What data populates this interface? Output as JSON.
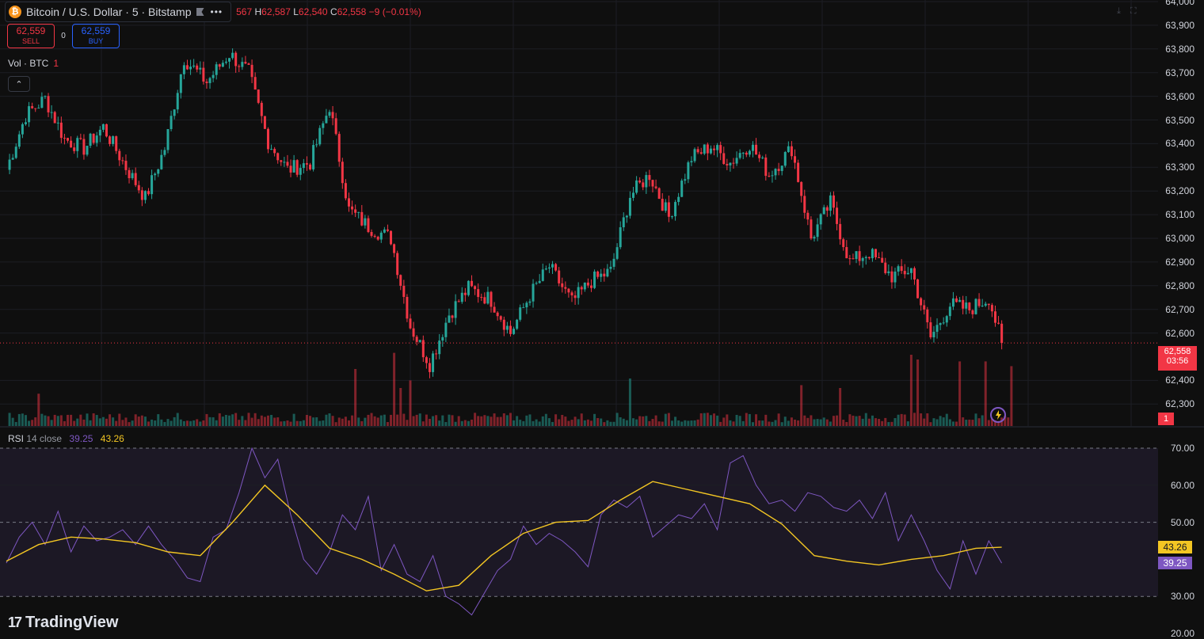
{
  "legend": {
    "coin_symbol": "₿",
    "title": "Bitcoin / U.S. Dollar · 5 · Bitstamp",
    "more": "•••",
    "open_partial": "567",
    "h_label": "H",
    "h_value": "62,587",
    "l_label": "L",
    "l_value": "62,540",
    "c_label": "C",
    "c_value": "62,558",
    "change": "−9 (−0.01%)"
  },
  "trade": {
    "sell_price": "62,559",
    "sell_label": "SELL",
    "spread": "0",
    "buy_price": "62,559",
    "buy_label": "BUY"
  },
  "volume_legend": {
    "label": "Vol · BTC",
    "value": "1"
  },
  "collapse_glyph": "⌃",
  "rsi_legend": {
    "label": "RSI",
    "params": "14 close",
    "rsi_value": "39.25",
    "ma_value": "43.26"
  },
  "price_axis": {
    "ticks": [
      "64,000",
      "63,900",
      "63,800",
      "63,700",
      "63,600",
      "63,500",
      "63,400",
      "63,300",
      "63,200",
      "63,100",
      "63,000",
      "62,900",
      "62,800",
      "62,700",
      "62,600",
      "62,400",
      "62,300"
    ],
    "last_price": "62,558",
    "countdown": "03:56",
    "volume_last": "1"
  },
  "rsi_axis": {
    "ticks": [
      "70.00",
      "60.00",
      "50.00",
      "30.00",
      "20.00"
    ],
    "ma_tag": "43.26",
    "rsi_tag": "39.25"
  },
  "brand": {
    "mark": "17",
    "name": "TradingView"
  },
  "colors": {
    "up": "#26a69a",
    "down": "#f23645",
    "rsi_line": "#7e57c2",
    "rsi_ma": "#f3c623",
    "accent": "#2962ff"
  },
  "chart_data": [
    {
      "type": "candlestick",
      "title": "Bitcoin / U.S. Dollar · 5 · Bitstamp",
      "ylim": [
        62250,
        64000
      ],
      "y_ticks": [
        62300,
        62400,
        62600,
        62700,
        62800,
        62900,
        63000,
        63100,
        63200,
        63300,
        63400,
        63500,
        63600,
        63700,
        63800,
        63900,
        64000
      ],
      "last_close": 62558,
      "anchors": [
        {
          "i": 0,
          "p": 63290
        },
        {
          "i": 6,
          "p": 63520
        },
        {
          "i": 12,
          "p": 63590
        },
        {
          "i": 18,
          "p": 63420
        },
        {
          "i": 24,
          "p": 63380
        },
        {
          "i": 30,
          "p": 63470
        },
        {
          "i": 37,
          "p": 63300
        },
        {
          "i": 43,
          "p": 63170
        },
        {
          "i": 49,
          "p": 63380
        },
        {
          "i": 55,
          "p": 63760
        },
        {
          "i": 62,
          "p": 63660
        },
        {
          "i": 69,
          "p": 63780
        },
        {
          "i": 75,
          "p": 63700
        },
        {
          "i": 81,
          "p": 63410
        },
        {
          "i": 87,
          "p": 63290
        },
        {
          "i": 94,
          "p": 63320
        },
        {
          "i": 100,
          "p": 63560
        },
        {
          "i": 106,
          "p": 63120
        },
        {
          "i": 112,
          "p": 63050
        },
        {
          "i": 119,
          "p": 63000
        },
        {
          "i": 125,
          "p": 62630
        },
        {
          "i": 131,
          "p": 62470
        },
        {
          "i": 137,
          "p": 62680
        },
        {
          "i": 143,
          "p": 62790
        },
        {
          "i": 150,
          "p": 62740
        },
        {
          "i": 156,
          "p": 62600
        },
        {
          "i": 162,
          "p": 62760
        },
        {
          "i": 168,
          "p": 62880
        },
        {
          "i": 175,
          "p": 62730
        },
        {
          "i": 181,
          "p": 62820
        },
        {
          "i": 187,
          "p": 62860
        },
        {
          "i": 193,
          "p": 63180
        },
        {
          "i": 199,
          "p": 63270
        },
        {
          "i": 205,
          "p": 63090
        },
        {
          "i": 212,
          "p": 63340
        },
        {
          "i": 218,
          "p": 63390
        },
        {
          "i": 224,
          "p": 63320
        },
        {
          "i": 230,
          "p": 63400
        },
        {
          "i": 236,
          "p": 63270
        },
        {
          "i": 243,
          "p": 63380
        },
        {
          "i": 249,
          "p": 63000
        },
        {
          "i": 255,
          "p": 63150
        },
        {
          "i": 261,
          "p": 62900
        },
        {
          "i": 267,
          "p": 62940
        },
        {
          "i": 274,
          "p": 62840
        },
        {
          "i": 280,
          "p": 62870
        },
        {
          "i": 286,
          "p": 62580
        },
        {
          "i": 292,
          "p": 62720
        },
        {
          "i": 298,
          "p": 62700
        },
        {
          "i": 304,
          "p": 62750
        },
        {
          "i": 308,
          "p": 62558
        }
      ],
      "volume": {
        "baseline_values": "low",
        "spikes": [
          {
            "i": 10,
            "v": 0.34,
            "dir": "down"
          },
          {
            "i": 108,
            "v": 0.6,
            "dir": "down"
          },
          {
            "i": 120,
            "v": 0.77,
            "dir": "down"
          },
          {
            "i": 122,
            "v": 0.4,
            "dir": "down"
          },
          {
            "i": 125,
            "v": 0.48,
            "dir": "down"
          },
          {
            "i": 193,
            "v": 0.5,
            "dir": "up"
          },
          {
            "i": 246,
            "v": 0.43,
            "dir": "down"
          },
          {
            "i": 258,
            "v": 0.4,
            "dir": "down"
          },
          {
            "i": 280,
            "v": 0.75,
            "dir": "down"
          },
          {
            "i": 282,
            "v": 0.7,
            "dir": "down"
          },
          {
            "i": 295,
            "v": 0.68,
            "dir": "down"
          },
          {
            "i": 303,
            "v": 0.68,
            "dir": "down"
          },
          {
            "i": 311,
            "v": 0.63,
            "dir": "down"
          }
        ]
      }
    },
    {
      "type": "line",
      "title": "RSI 14 close",
      "ylim": [
        20,
        75
      ],
      "y_ticks": [
        20,
        30,
        50,
        60,
        70
      ],
      "guides": [
        30,
        50,
        70
      ],
      "series": [
        {
          "name": "RSI",
          "color": "#7e57c2",
          "x": [
            0,
            4,
            8,
            12,
            16,
            20,
            24,
            28,
            32,
            36,
            40,
            44,
            48,
            52,
            56,
            60,
            64,
            68,
            72,
            76,
            80,
            84,
            88,
            92,
            96,
            100,
            104,
            108,
            112,
            116,
            120,
            124,
            128,
            132,
            136,
            140,
            144,
            148,
            152,
            156,
            160,
            164,
            168,
            172,
            176,
            180,
            184,
            188,
            192,
            196,
            200,
            204,
            208,
            212,
            216,
            220,
            224,
            228,
            232,
            236,
            240,
            244,
            248,
            252,
            256,
            260,
            264,
            268,
            272,
            276,
            280,
            284,
            288,
            292,
            296,
            300,
            304,
            308
          ],
          "values": [
            39,
            46,
            50,
            44,
            53,
            42,
            49,
            45,
            46,
            48,
            44,
            49,
            44,
            40,
            35,
            34,
            46,
            48,
            58,
            70,
            62,
            67,
            52,
            40,
            36,
            42,
            52,
            48,
            57,
            37,
            44,
            36,
            34,
            41,
            30,
            28,
            25,
            31,
            37,
            40,
            49,
            44,
            47,
            45,
            42,
            38,
            52,
            56,
            54,
            57,
            46,
            49,
            52,
            51,
            55,
            48,
            66,
            68,
            60,
            55,
            56,
            53,
            58,
            57,
            54,
            53,
            56,
            51,
            58,
            45,
            52,
            45,
            37,
            32,
            45,
            36,
            45,
            39
          ]
        },
        {
          "name": "MA",
          "color": "#f3c623",
          "x": [
            0,
            10,
            20,
            30,
            40,
            50,
            60,
            70,
            80,
            90,
            100,
            110,
            120,
            130,
            140,
            150,
            160,
            170,
            180,
            190,
            200,
            210,
            220,
            230,
            240,
            250,
            260,
            270,
            280,
            290,
            300,
            308
          ],
          "values": [
            39.5,
            44,
            46,
            45.5,
            44.5,
            42,
            41,
            50,
            60,
            52,
            43,
            40,
            36,
            31.5,
            33,
            41,
            47,
            50,
            50.5,
            56,
            61,
            59,
            57,
            55,
            49.5,
            41,
            39.5,
            38.5,
            40,
            41,
            43,
            43.26
          ]
        }
      ]
    }
  ]
}
